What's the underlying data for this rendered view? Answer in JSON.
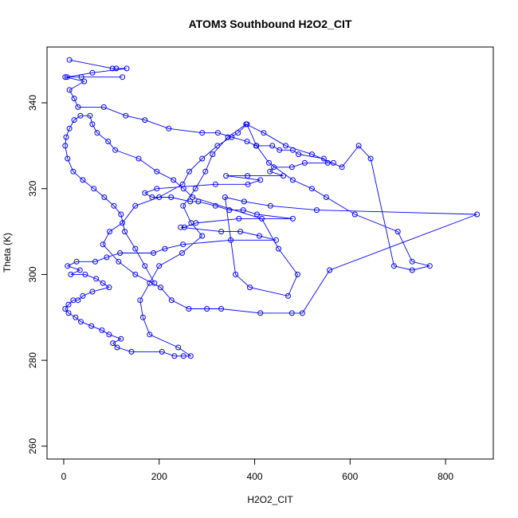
{
  "chart_data": {
    "type": "line",
    "title": "ATOM3 Southbound H2O2_CIT",
    "xlabel": "H2O2_CIT",
    "ylabel": "Theta (K)",
    "xlim": [
      -35,
      900
    ],
    "ylim": [
      257,
      353
    ],
    "xticks": [
      0,
      200,
      400,
      600,
      800
    ],
    "yticks": [
      260,
      280,
      300,
      320,
      340
    ],
    "grid": false,
    "legend": "none",
    "colors": {
      "series": "#0000ff"
    },
    "series": [
      {
        "x": [
          12,
          102,
          110,
          132,
          60,
          7,
          37,
          123,
          3,
          43,
          12,
          22,
          30,
          84,
          130,
          170,
          220,
          290,
          323,
          352,
          384,
          403,
          437,
          452,
          480,
          492,
          545,
          553,
          565,
          505,
          478,
          440,
          432,
          460,
          385,
          340,
          412,
          386,
          318,
          195,
          170,
          185,
          225,
          265,
          282,
          318,
          347,
          376,
          405,
          480,
          367,
          277,
          253,
          245,
          330,
          370,
          410,
          445,
          350,
          250,
          212,
          188,
          118,
          90,
          66,
          27,
          8,
          34,
          15,
          45,
          68,
          82,
          95,
          60,
          40,
          30,
          20,
          10,
          3,
          10,
          25,
          36,
          58,
          80,
          95,
          120,
          103,
          112,
          142,
          206,
          232,
          251,
          266,
          240,
          180,
          166,
          160,
          180,
          200,
          248,
          290,
          267,
          250,
          276,
          297,
          312,
          344,
          382,
          419,
          465,
          520,
          583,
          618,
          643,
          692,
          730,
          767,
          730,
          700,
          610,
          550,
          520,
          480,
          430,
          404,
          384,
          365,
          322,
          290,
          263,
          249,
          200,
          150,
          123,
          96,
          82,
          115,
          150,
          203,
          226,
          262,
          300,
          330,
          412,
          478,
          500,
          557,
          866,
          530,
          433,
          378,
          338,
          360,
          390,
          470,
          490,
          450,
          415,
          270,
          251,
          230,
          195,
          157,
          108,
          93,
          70,
          60,
          55,
          35,
          22,
          12,
          5,
          3,
          8,
          20,
          40,
          63,
          85,
          105,
          120,
          128,
          150,
          170,
          190
        ],
        "y": [
          350,
          348,
          348,
          348,
          347,
          346,
          346,
          346,
          346,
          345,
          343,
          341,
          339,
          339,
          337,
          336,
          334,
          333,
          333,
          332,
          331,
          330,
          330,
          329,
          329,
          328,
          327,
          326,
          326,
          326,
          325,
          325,
          324,
          323,
          323,
          323,
          322,
          321,
          321,
          320,
          319,
          318,
          318,
          317,
          317,
          316,
          315,
          315,
          314,
          313,
          313,
          312,
          311,
          311,
          310,
          310,
          309,
          308,
          308,
          307,
          306,
          305,
          305,
          304,
          303,
          303,
          302,
          301,
          300,
          300,
          299,
          298,
          297,
          296,
          295,
          294,
          294,
          293,
          292,
          291,
          290,
          289,
          288,
          287,
          286,
          285,
          284,
          283,
          282,
          282,
          281,
          281,
          281,
          283,
          286,
          290,
          294,
          298,
          302,
          305,
          309,
          312,
          316,
          320,
          324,
          328,
          332,
          335,
          333,
          330,
          328,
          325,
          330,
          327,
          302,
          301,
          302,
          303,
          310,
          314,
          318,
          320,
          322,
          326,
          330,
          335,
          333,
          330,
          327,
          324,
          321,
          318,
          316,
          312,
          310,
          307,
          303,
          300,
          297,
          294,
          292,
          292,
          292,
          291,
          291,
          291,
          301,
          314,
          315,
          316,
          317,
          318,
          300,
          297,
          295,
          300,
          306,
          313,
          318,
          320,
          322,
          324,
          327,
          329,
          331,
          333,
          335,
          337,
          337,
          336,
          334,
          332,
          330,
          327,
          324,
          322,
          320,
          318,
          316,
          314,
          310,
          306,
          302,
          298
        ]
      }
    ]
  }
}
